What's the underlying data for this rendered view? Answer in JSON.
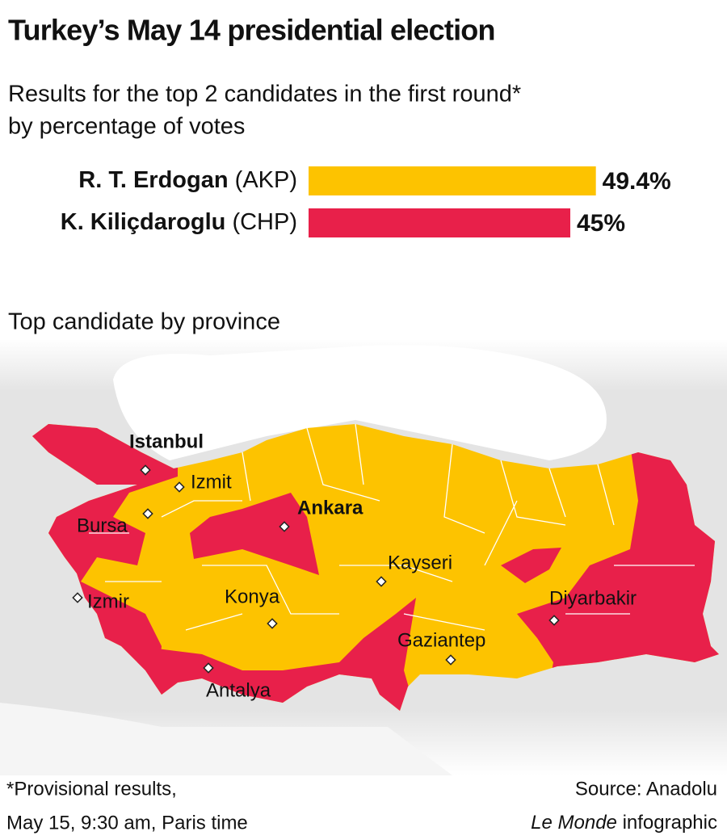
{
  "chart_data": {
    "type": "bar",
    "title": "Turkey’s May 14 presidential election",
    "subtitle": "Results for the top 2 candidates in the first round*",
    "description": "by percentage of votes",
    "categories": [
      "R. T. Erdogan",
      "K. Kiliçdaroglu"
    ],
    "parties": [
      "(AKP)",
      "(CHP)"
    ],
    "values": [
      49.4,
      45
    ],
    "value_labels": [
      "49.4%",
      "45%"
    ],
    "colors": [
      "#fdc300",
      "#e8204a"
    ],
    "map": {
      "title": "Top candidate by province",
      "cities": [
        "Istanbul",
        "Izmit",
        "Ankara",
        "Bursa",
        "Kayseri",
        "Izmir",
        "Konya",
        "Diyarbakir",
        "Gaziantep",
        "Antalya"
      ]
    },
    "footnote": [
      "*Provisional results,",
      "May 15, 9:30 am, Paris time"
    ],
    "source": "Source: Anadolu",
    "credit": {
      "italic": "Le Monde",
      "text": "infographic"
    }
  }
}
